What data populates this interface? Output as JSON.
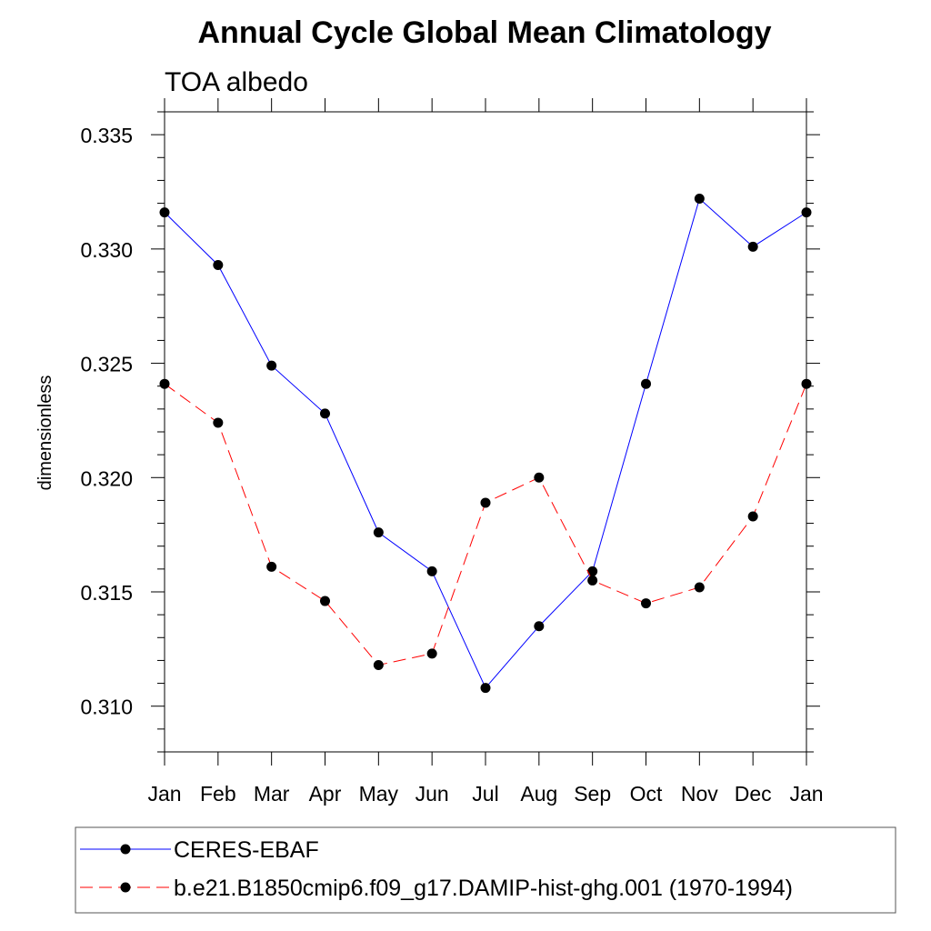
{
  "chart_data": {
    "type": "line",
    "title": "Annual Cycle Global Mean Climatology",
    "subtitle": "TOA albedo",
    "xlabel": "",
    "ylabel": "dimensionless",
    "categories": [
      "Jan",
      "Feb",
      "Mar",
      "Apr",
      "May",
      "Jun",
      "Jul",
      "Aug",
      "Sep",
      "Oct",
      "Nov",
      "Dec",
      "Jan"
    ],
    "ylim": [
      0.308,
      0.336
    ],
    "yticks": [
      "0.310",
      "0.315",
      "0.320",
      "0.325",
      "0.330",
      "0.335"
    ],
    "legend_position": "bottom",
    "series": [
      {
        "name": "CERES-EBAF",
        "color": "#0000ff",
        "dash": "solid",
        "values": [
          0.3316,
          0.3293,
          0.3249,
          0.3228,
          0.3176,
          0.3159,
          0.3108,
          0.3135,
          0.3159,
          0.3241,
          0.3322,
          0.3301,
          0.3316
        ]
      },
      {
        "name": "b.e21.B1850cmip6.f09_g17.DAMIP-hist-ghg.001 (1970-1994)",
        "color": "#ff0000",
        "dash": "dashed",
        "values": [
          0.3241,
          0.3224,
          0.3161,
          0.3146,
          0.3118,
          0.3123,
          0.3189,
          0.32,
          0.3155,
          0.3145,
          0.3152,
          0.3183,
          0.3241
        ]
      }
    ]
  }
}
